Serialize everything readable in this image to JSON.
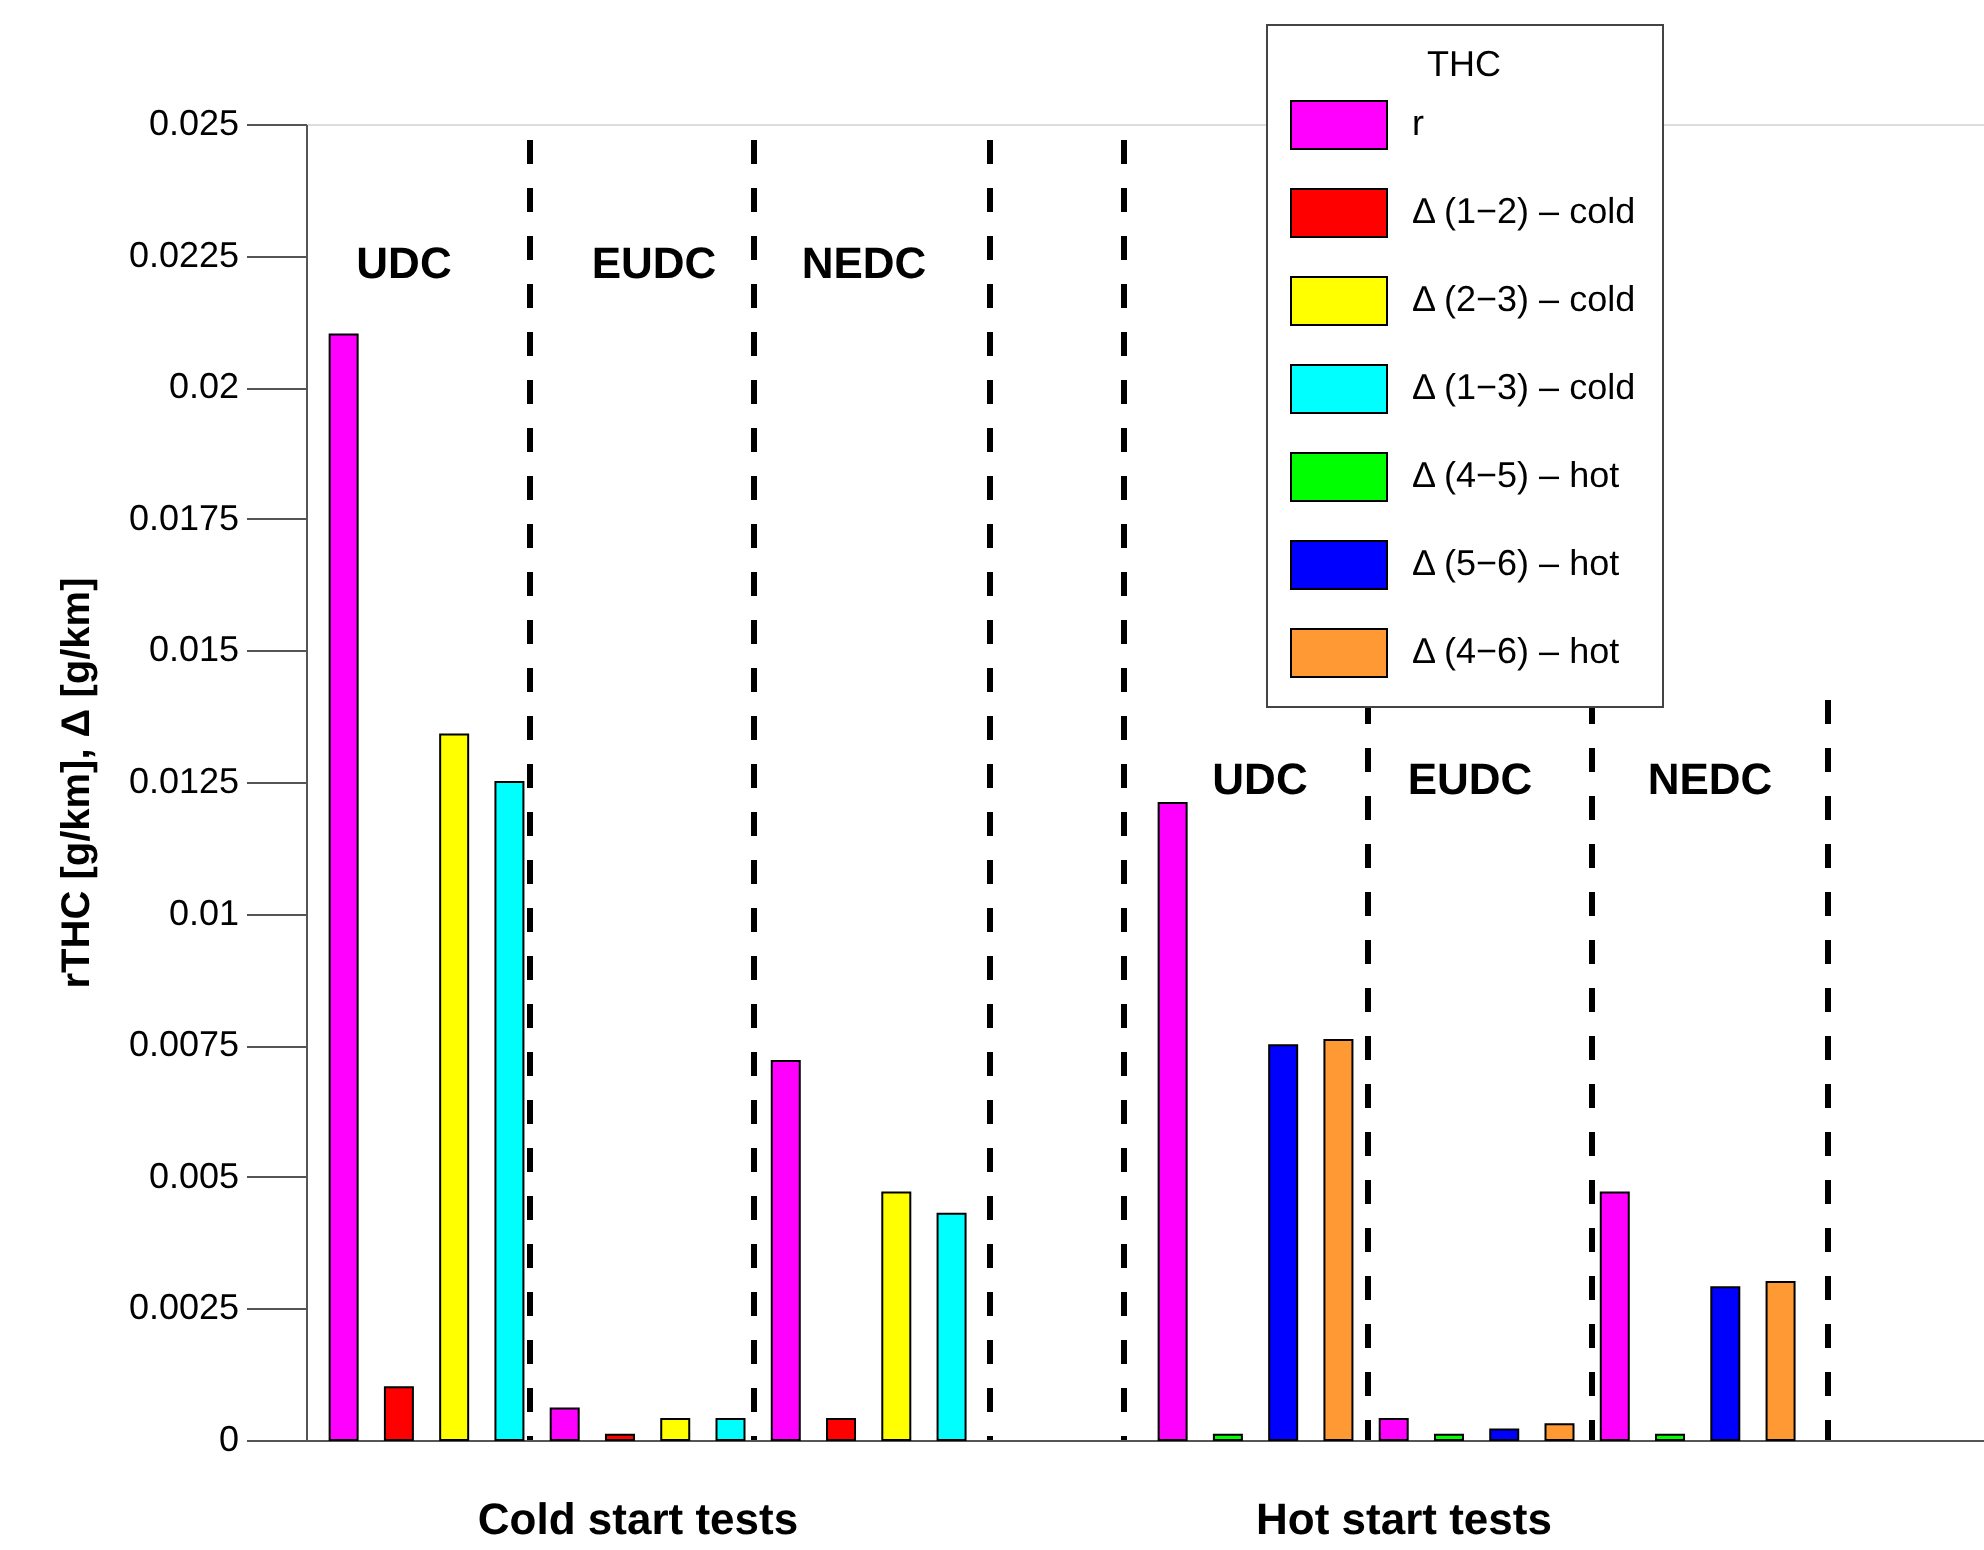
{
  "chart_data": {
    "type": "bar",
    "ylabel": "rTHC  [g/km], Δ [g/km]",
    "legend_title": "THC",
    "legend": "top right",
    "tick_labels": "y",
    "categories": [
      null,
      null,
      null,
      null,
      null,
      null,
      null,
      null,
      null,
      null,
      null,
      null,
      null,
      null,
      null,
      null,
      null,
      null,
      null,
      null,
      null,
      null,
      null,
      null,
      null,
      null,
      null,
      null,
      null,
      null
    ],
    "ylim": [
      0,
      0.025
    ],
    "yticks": [
      0,
      0.0025,
      0.005,
      0.0075,
      0.01,
      0.0125,
      0.015,
      0.0175,
      0.02,
      0.0225,
      0.025
    ],
    "series": [
      {
        "name": "r",
        "color": "#ff00ff",
        "values": [
          0.021,
          null,
          null,
          null,
          0.0006,
          null,
          null,
          null,
          0.0072,
          null,
          null,
          null,
          null,
          null,
          null,
          0.0121,
          null,
          null,
          null,
          0.0004,
          null,
          null,
          null,
          0.0047,
          null,
          null,
          null,
          null,
          null,
          null
        ]
      },
      {
        "name": "Δ (1−2) – cold",
        "color": "#ff0000",
        "values": [
          null,
          0.001,
          null,
          null,
          null,
          0.0001,
          null,
          null,
          null,
          0.0004,
          null,
          null,
          null,
          null,
          null,
          null,
          null,
          null,
          null,
          null,
          null,
          null,
          null,
          null,
          null,
          null,
          null,
          null,
          null,
          null
        ]
      },
      {
        "name": "Δ (2−3) – cold",
        "color": "#ffff00",
        "values": [
          null,
          null,
          0.0134,
          null,
          null,
          null,
          0.0004,
          null,
          null,
          null,
          0.0047,
          null,
          null,
          null,
          null,
          null,
          null,
          null,
          null,
          null,
          null,
          null,
          null,
          null,
          null,
          null,
          null,
          null,
          null,
          null
        ]
      },
      {
        "name": "Δ (1−3) – cold",
        "color": "#00ffff",
        "values": [
          null,
          null,
          null,
          0.0125,
          null,
          null,
          null,
          0.0004,
          null,
          null,
          null,
          0.0043,
          null,
          null,
          null,
          null,
          null,
          null,
          null,
          null,
          null,
          null,
          null,
          null,
          null,
          null,
          null,
          null,
          null,
          null
        ]
      },
      {
        "name": "Δ (4−5) – hot",
        "color": "#00ff00",
        "values": [
          null,
          null,
          null,
          null,
          null,
          null,
          null,
          null,
          null,
          null,
          null,
          null,
          null,
          null,
          null,
          null,
          0.0001,
          null,
          null,
          null,
          0.0001,
          null,
          null,
          null,
          0.0001,
          null,
          null,
          null,
          null,
          null
        ]
      },
      {
        "name": "Δ (5−6) – hot",
        "color": "#0000ff",
        "values": [
          null,
          null,
          null,
          null,
          null,
          null,
          null,
          null,
          null,
          null,
          null,
          null,
          null,
          null,
          null,
          null,
          null,
          0.0075,
          null,
          null,
          null,
          0.0002,
          null,
          null,
          null,
          0.0029,
          null,
          null,
          null,
          null
        ]
      },
      {
        "name": "Δ (4−6) – hot",
        "color": "#ff9933",
        "values": [
          null,
          null,
          null,
          null,
          null,
          null,
          null,
          null,
          null,
          null,
          null,
          null,
          null,
          null,
          null,
          null,
          null,
          null,
          0.0076,
          null,
          null,
          null,
          0.0003,
          null,
          null,
          null,
          0.003,
          null,
          null,
          null
        ]
      }
    ],
    "annotations": [
      "UDC",
      "EUDC",
      "NEDC",
      "UDC",
      "EUDC",
      "NEDC",
      "Cold start tests",
      "Hot start tests"
    ]
  }
}
